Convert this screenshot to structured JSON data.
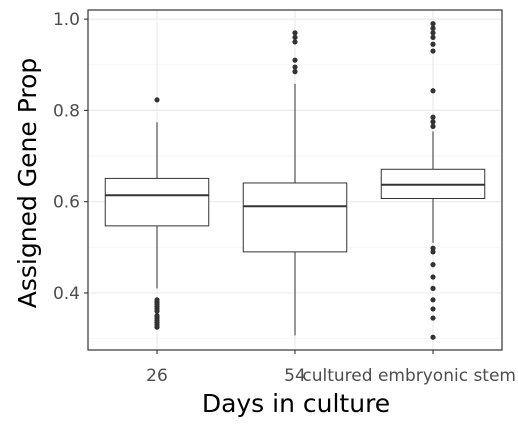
{
  "chart_data": {
    "type": "boxplot",
    "xlabel": "Days in culture",
    "ylabel": "Assigned Gene Prop",
    "categories": [
      "26",
      "54",
      "cultured embryonic stem"
    ],
    "ylim": [
      0.275,
      1.02
    ],
    "yticks": [
      0.4,
      0.6,
      0.8,
      1.0
    ],
    "ytick_labels": [
      "0.4",
      "0.6",
      "0.8",
      "1.0"
    ],
    "grid": true,
    "legend": "none",
    "boxes": [
      {
        "category": "26",
        "whisker_low": 0.41,
        "q1": 0.547,
        "median": 0.614,
        "q3": 0.651,
        "whisker_high": 0.774,
        "outliers": [
          0.823,
          0.385,
          0.38,
          0.375,
          0.37,
          0.365,
          0.36,
          0.35,
          0.345,
          0.34,
          0.335,
          0.33,
          0.325
        ]
      },
      {
        "category": "54",
        "whisker_low": 0.307,
        "q1": 0.49,
        "median": 0.59,
        "q3": 0.641,
        "whisker_high": 0.858,
        "outliers": [
          0.97,
          0.96,
          0.95,
          0.91,
          0.895,
          0.885
        ]
      },
      {
        "category": "cultured embryonic stem",
        "whisker_low": 0.51,
        "q1": 0.607,
        "median": 0.637,
        "q3": 0.671,
        "whisker_high": 0.754,
        "outliers": [
          0.99,
          0.98,
          0.97,
          0.96,
          0.945,
          0.93,
          0.843,
          0.785,
          0.775,
          0.765,
          0.498,
          0.49,
          0.462,
          0.435,
          0.41,
          0.385,
          0.365,
          0.345,
          0.303
        ]
      }
    ]
  },
  "style": {
    "panel_border": "#333333",
    "grid_major": "#ebebeb",
    "grid_minor": "#f5f5f5",
    "box_fill": "#ffffff",
    "line_color": "#333333",
    "tick_text": "#4d4d4d",
    "title_text": "#000000"
  }
}
